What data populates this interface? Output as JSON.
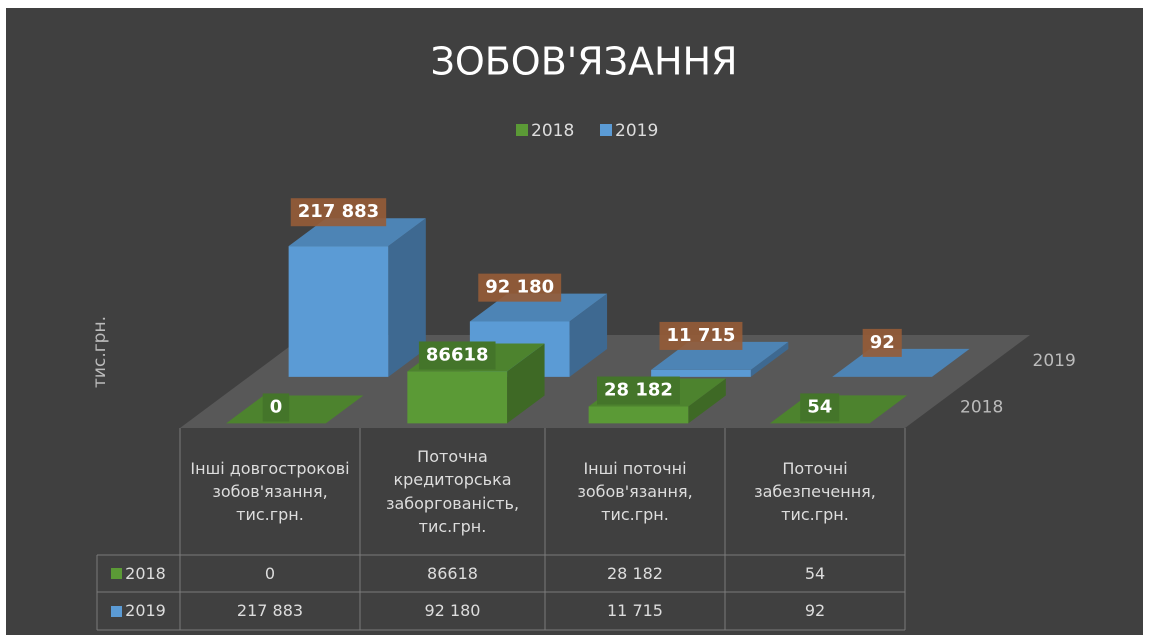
{
  "chart_data": {
    "type": "bar3d",
    "title": "ЗОБОВ'ЯЗАННЯ",
    "y_label": "тис.грн.",
    "categories": [
      "Інші довгострокові зобов'язання, тис.грн.",
      "Поточна кредиторська заборгованість, тис.грн.",
      "Інші поточні зобов'язання, тис.грн.",
      "Поточні забезпечення, тис.грн."
    ],
    "series": [
      {
        "name": "2018",
        "color": "#5b9a36",
        "values": [
          0,
          86618,
          28182,
          54
        ],
        "value_labels": [
          "0",
          "86618",
          "28 182",
          "54"
        ]
      },
      {
        "name": "2019",
        "color": "#5b9bd5",
        "values": [
          217883,
          92180,
          11715,
          92
        ],
        "value_labels": [
          "217 883",
          "92 180",
          "11 715",
          "92"
        ]
      }
    ],
    "ylim": [
      0,
      250000
    ],
    "legend": "top",
    "data_table": true
  }
}
